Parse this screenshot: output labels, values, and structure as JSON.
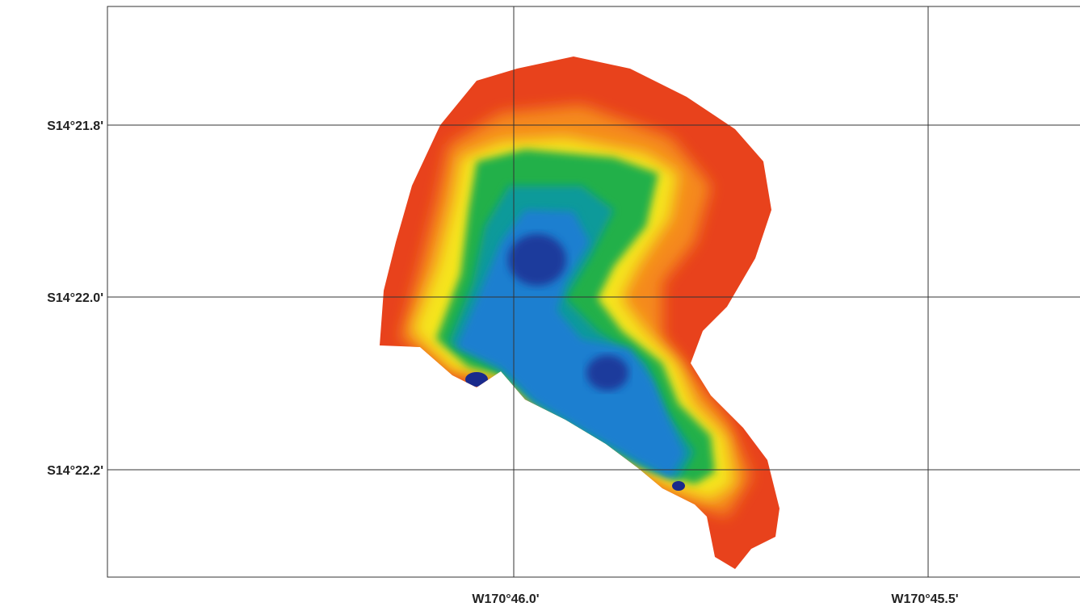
{
  "map": {
    "latitude_labels": [
      "S14°21.8'",
      "S14°22.0'",
      "S14°22.2'"
    ],
    "longitude_labels": [
      "W170°46.0'",
      "W170°45.5'"
    ]
  }
}
